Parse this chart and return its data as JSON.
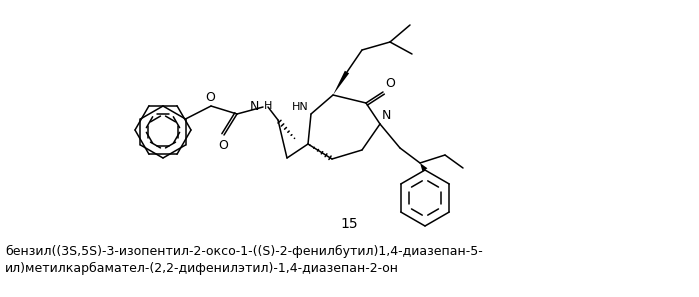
{
  "compound_number": "15",
  "line1": "бензил((3S,5S)-3-изопентил-2-оксо-1-((S)-2-фенилбутил)1,4-диазепан-5-",
  "line2": "ил)метилкарбамател-(2,2-дифенилэтил)-1,4-диазепан-2-он",
  "bg_color": "#ffffff",
  "text_color": "#000000",
  "compound_number_fontsize": 10,
  "label_fontsize": 9.0,
  "fig_width": 6.99,
  "fig_height": 2.97,
  "dpi": 100
}
